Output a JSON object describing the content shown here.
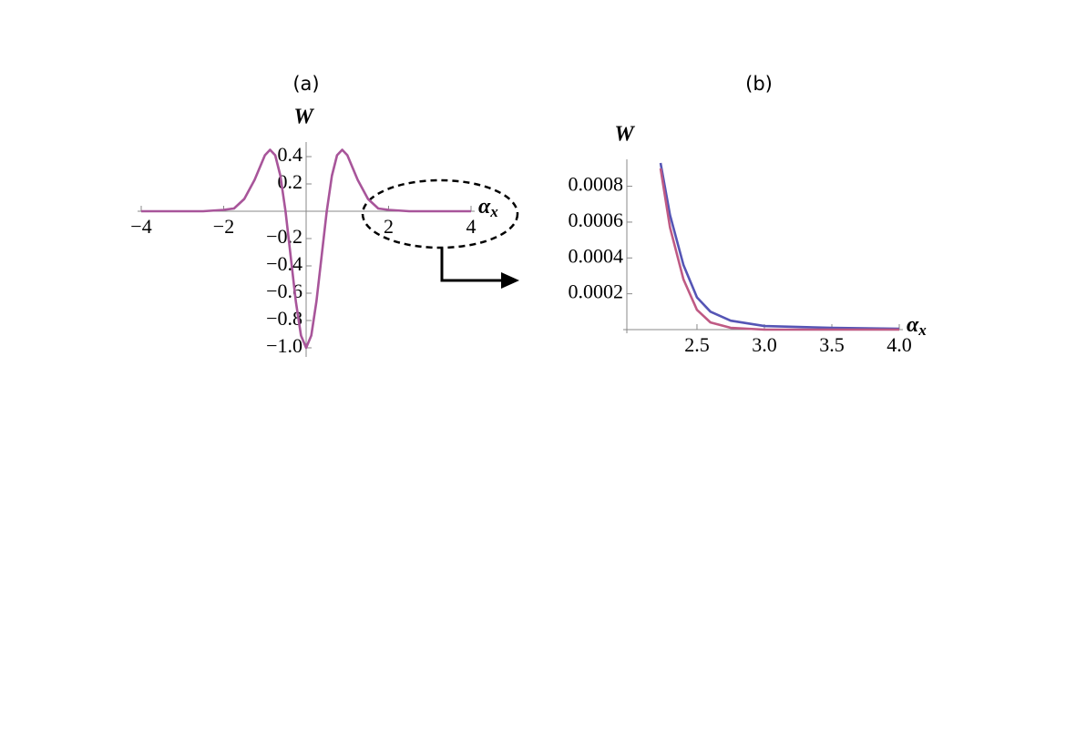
{
  "chart_data": [
    {
      "type": "line",
      "title": "(a)",
      "y_label": "W",
      "x_label": "α",
      "x_label_subscript": "x",
      "x": [
        -4,
        -3.5,
        -3,
        -2.5,
        -2,
        -1.75,
        -1.5,
        -1.25,
        -1.125,
        -1,
        -0.875,
        -0.75,
        -0.625,
        -0.5,
        -0.375,
        -0.25,
        -0.125,
        0,
        0.125,
        0.25,
        0.375,
        0.5,
        0.625,
        0.75,
        0.875,
        1,
        1.125,
        1.25,
        1.5,
        1.75,
        2,
        2.5,
        3,
        3.5,
        4
      ],
      "series": [
        {
          "color": "#a8559a",
          "values": [
            0,
            0,
            0,
            0,
            0.01,
            0.02,
            0.09,
            0.23,
            0.32,
            0.41,
            0.45,
            0.41,
            0.26,
            0,
            -0.33,
            -0.66,
            -0.91,
            -1,
            -0.91,
            -0.66,
            -0.33,
            0,
            0.26,
            0.41,
            0.45,
            0.41,
            0.32,
            0.23,
            0.09,
            0.02,
            0.01,
            0,
            0,
            0,
            0
          ]
        }
      ],
      "xlim": [
        -4,
        4
      ],
      "xticks": [
        {
          "value": -4,
          "label": "−4"
        },
        {
          "value": -2,
          "label": "−2"
        },
        2,
        4
      ],
      "ylim": [
        -1.04,
        0.48
      ],
      "yticks": [
        0.4,
        0.2,
        {
          "value": -0.2,
          "label": "−0.2"
        },
        {
          "value": -0.4,
          "label": "−0.4"
        },
        {
          "value": -0.6,
          "label": "−0.6"
        },
        {
          "value": -0.8,
          "label": "−0.8"
        },
        {
          "value": -1.0,
          "label": "−1.0"
        }
      ]
    },
    {
      "type": "line",
      "title": "(b)",
      "y_label": "W",
      "x_label": "α",
      "x_label_subscript": "x",
      "x": [
        2.23,
        2.3,
        2.4,
        2.5,
        2.6,
        2.75,
        3,
        3.5,
        4
      ],
      "series": [
        {
          "color": "#5555b5",
          "values": [
            0.00093,
            0.00064,
            0.00036,
            0.00018,
            0.0001,
            5e-05,
            2e-05,
            1e-05,
            5e-06
          ]
        },
        {
          "color": "#bf5a84",
          "values": [
            0.0009,
            0.00057,
            0.00028,
            0.00011,
            4e-05,
            1e-05,
            0,
            0,
            0
          ]
        }
      ],
      "xlim": [
        1.98,
        4.0
      ],
      "xticks": [
        2.5,
        {
          "value": 3.0,
          "label": "3.0"
        },
        3.5,
        {
          "value": 4.0,
          "label": "4.0"
        }
      ],
      "ylim": [
        0,
        0.00093
      ],
      "yticks": [
        0.0008,
        0.0006,
        0.0004,
        0.0002
      ]
    }
  ]
}
